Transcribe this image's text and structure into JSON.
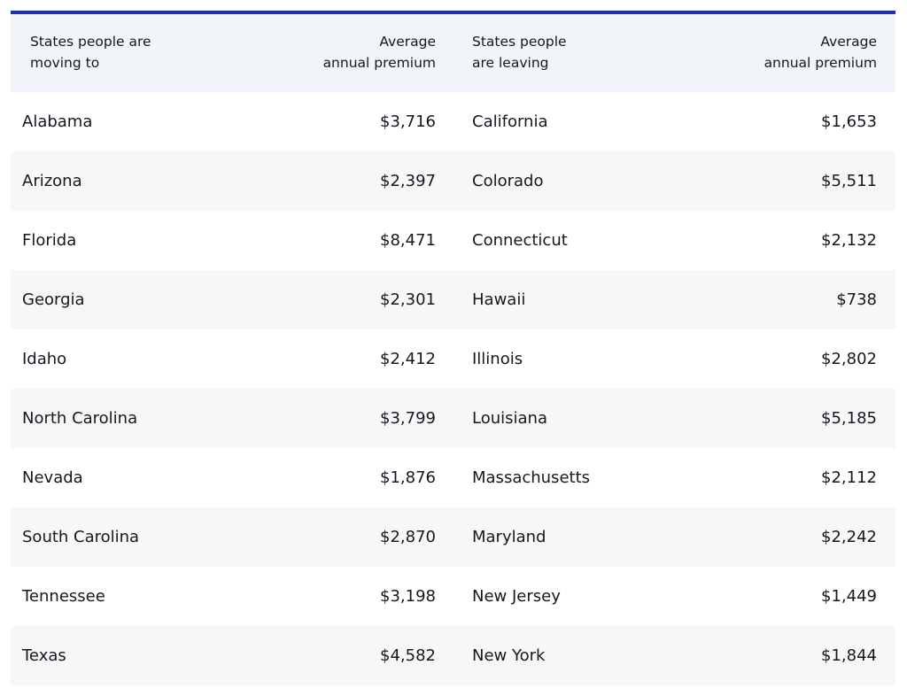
{
  "table": {
    "headers": {
      "moving_to": [
        "States people are",
        "moving to"
      ],
      "moving_to_premium": [
        "Average",
        "annual premium"
      ],
      "leaving": [
        "States people",
        "are leaving"
      ],
      "leaving_premium": [
        "Average",
        "annual premium"
      ]
    },
    "rows": [
      {
        "moving_state": "Alabama",
        "moving_premium": "$3,716",
        "leaving_state": "California",
        "leaving_premium": "$1,653"
      },
      {
        "moving_state": "Arizona",
        "moving_premium": "$2,397",
        "leaving_state": "Colorado",
        "leaving_premium": "$5,511"
      },
      {
        "moving_state": "Florida",
        "moving_premium": "$8,471",
        "leaving_state": "Connecticut",
        "leaving_premium": "$2,132"
      },
      {
        "moving_state": "Georgia",
        "moving_premium": "$2,301",
        "leaving_state": "Hawaii",
        "leaving_premium": "$738"
      },
      {
        "moving_state": "Idaho",
        "moving_premium": "$2,412",
        "leaving_state": "Illinois",
        "leaving_premium": "$2,802"
      },
      {
        "moving_state": "North Carolina",
        "moving_premium": "$3,799",
        "leaving_state": "Louisiana",
        "leaving_premium": "$5,185"
      },
      {
        "moving_state": "Nevada",
        "moving_premium": "$1,876",
        "leaving_state": "Massachusetts",
        "leaving_premium": "$2,112"
      },
      {
        "moving_state": "South Carolina",
        "moving_premium": "$2,870",
        "leaving_state": "Maryland",
        "leaving_premium": "$2,242"
      },
      {
        "moving_state": "Tennessee",
        "moving_premium": "$3,198",
        "leaving_state": "New Jersey",
        "leaving_premium": "$1,449"
      },
      {
        "moving_state": "Texas",
        "moving_premium": "$4,582",
        "leaving_state": "New York",
        "leaving_premium": "$1,844"
      }
    ]
  },
  "colors": {
    "accent_rule": "#1d2fb3",
    "header_bg": "#f1f4f8",
    "stripe_bg": "#f7f7f7"
  }
}
